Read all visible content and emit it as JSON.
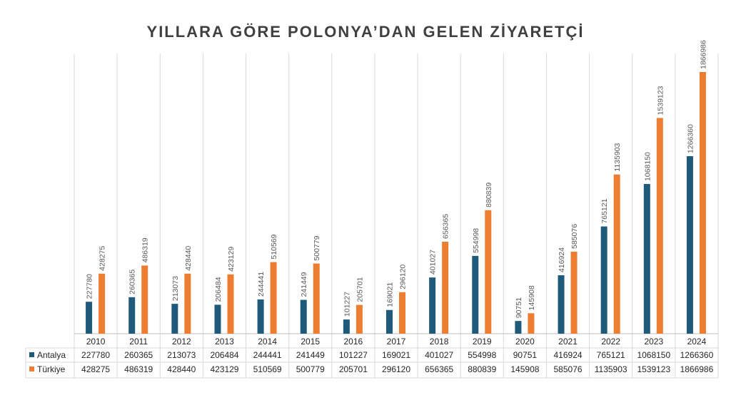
{
  "chart_data": {
    "type": "bar",
    "title": "YILLARA GÖRE POLONYA’DAN GELEN ZİYARETÇİ",
    "categories": [
      "2010",
      "2011",
      "2012",
      "2013",
      "2014",
      "2015",
      "2016",
      "2017",
      "2018",
      "2019",
      "2020",
      "2021",
      "2022",
      "2023",
      "2024"
    ],
    "series": [
      {
        "name": "Antalya",
        "color": "#1f5a7a",
        "values": [
          227780,
          260365,
          213073,
          206484,
          244441,
          241449,
          101227,
          169021,
          401027,
          554998,
          90751,
          416924,
          765121,
          1068150,
          1266360
        ]
      },
      {
        "name": "Türkiye",
        "color": "#ed7d31",
        "values": [
          428275,
          486319,
          428440,
          423129,
          510569,
          500779,
          205701,
          296120,
          656365,
          880839,
          145908,
          585076,
          1135903,
          1539123,
          1866986
        ]
      }
    ],
    "ylim": [
      0,
      1866986
    ],
    "grid": "vertical",
    "data_table": true
  }
}
